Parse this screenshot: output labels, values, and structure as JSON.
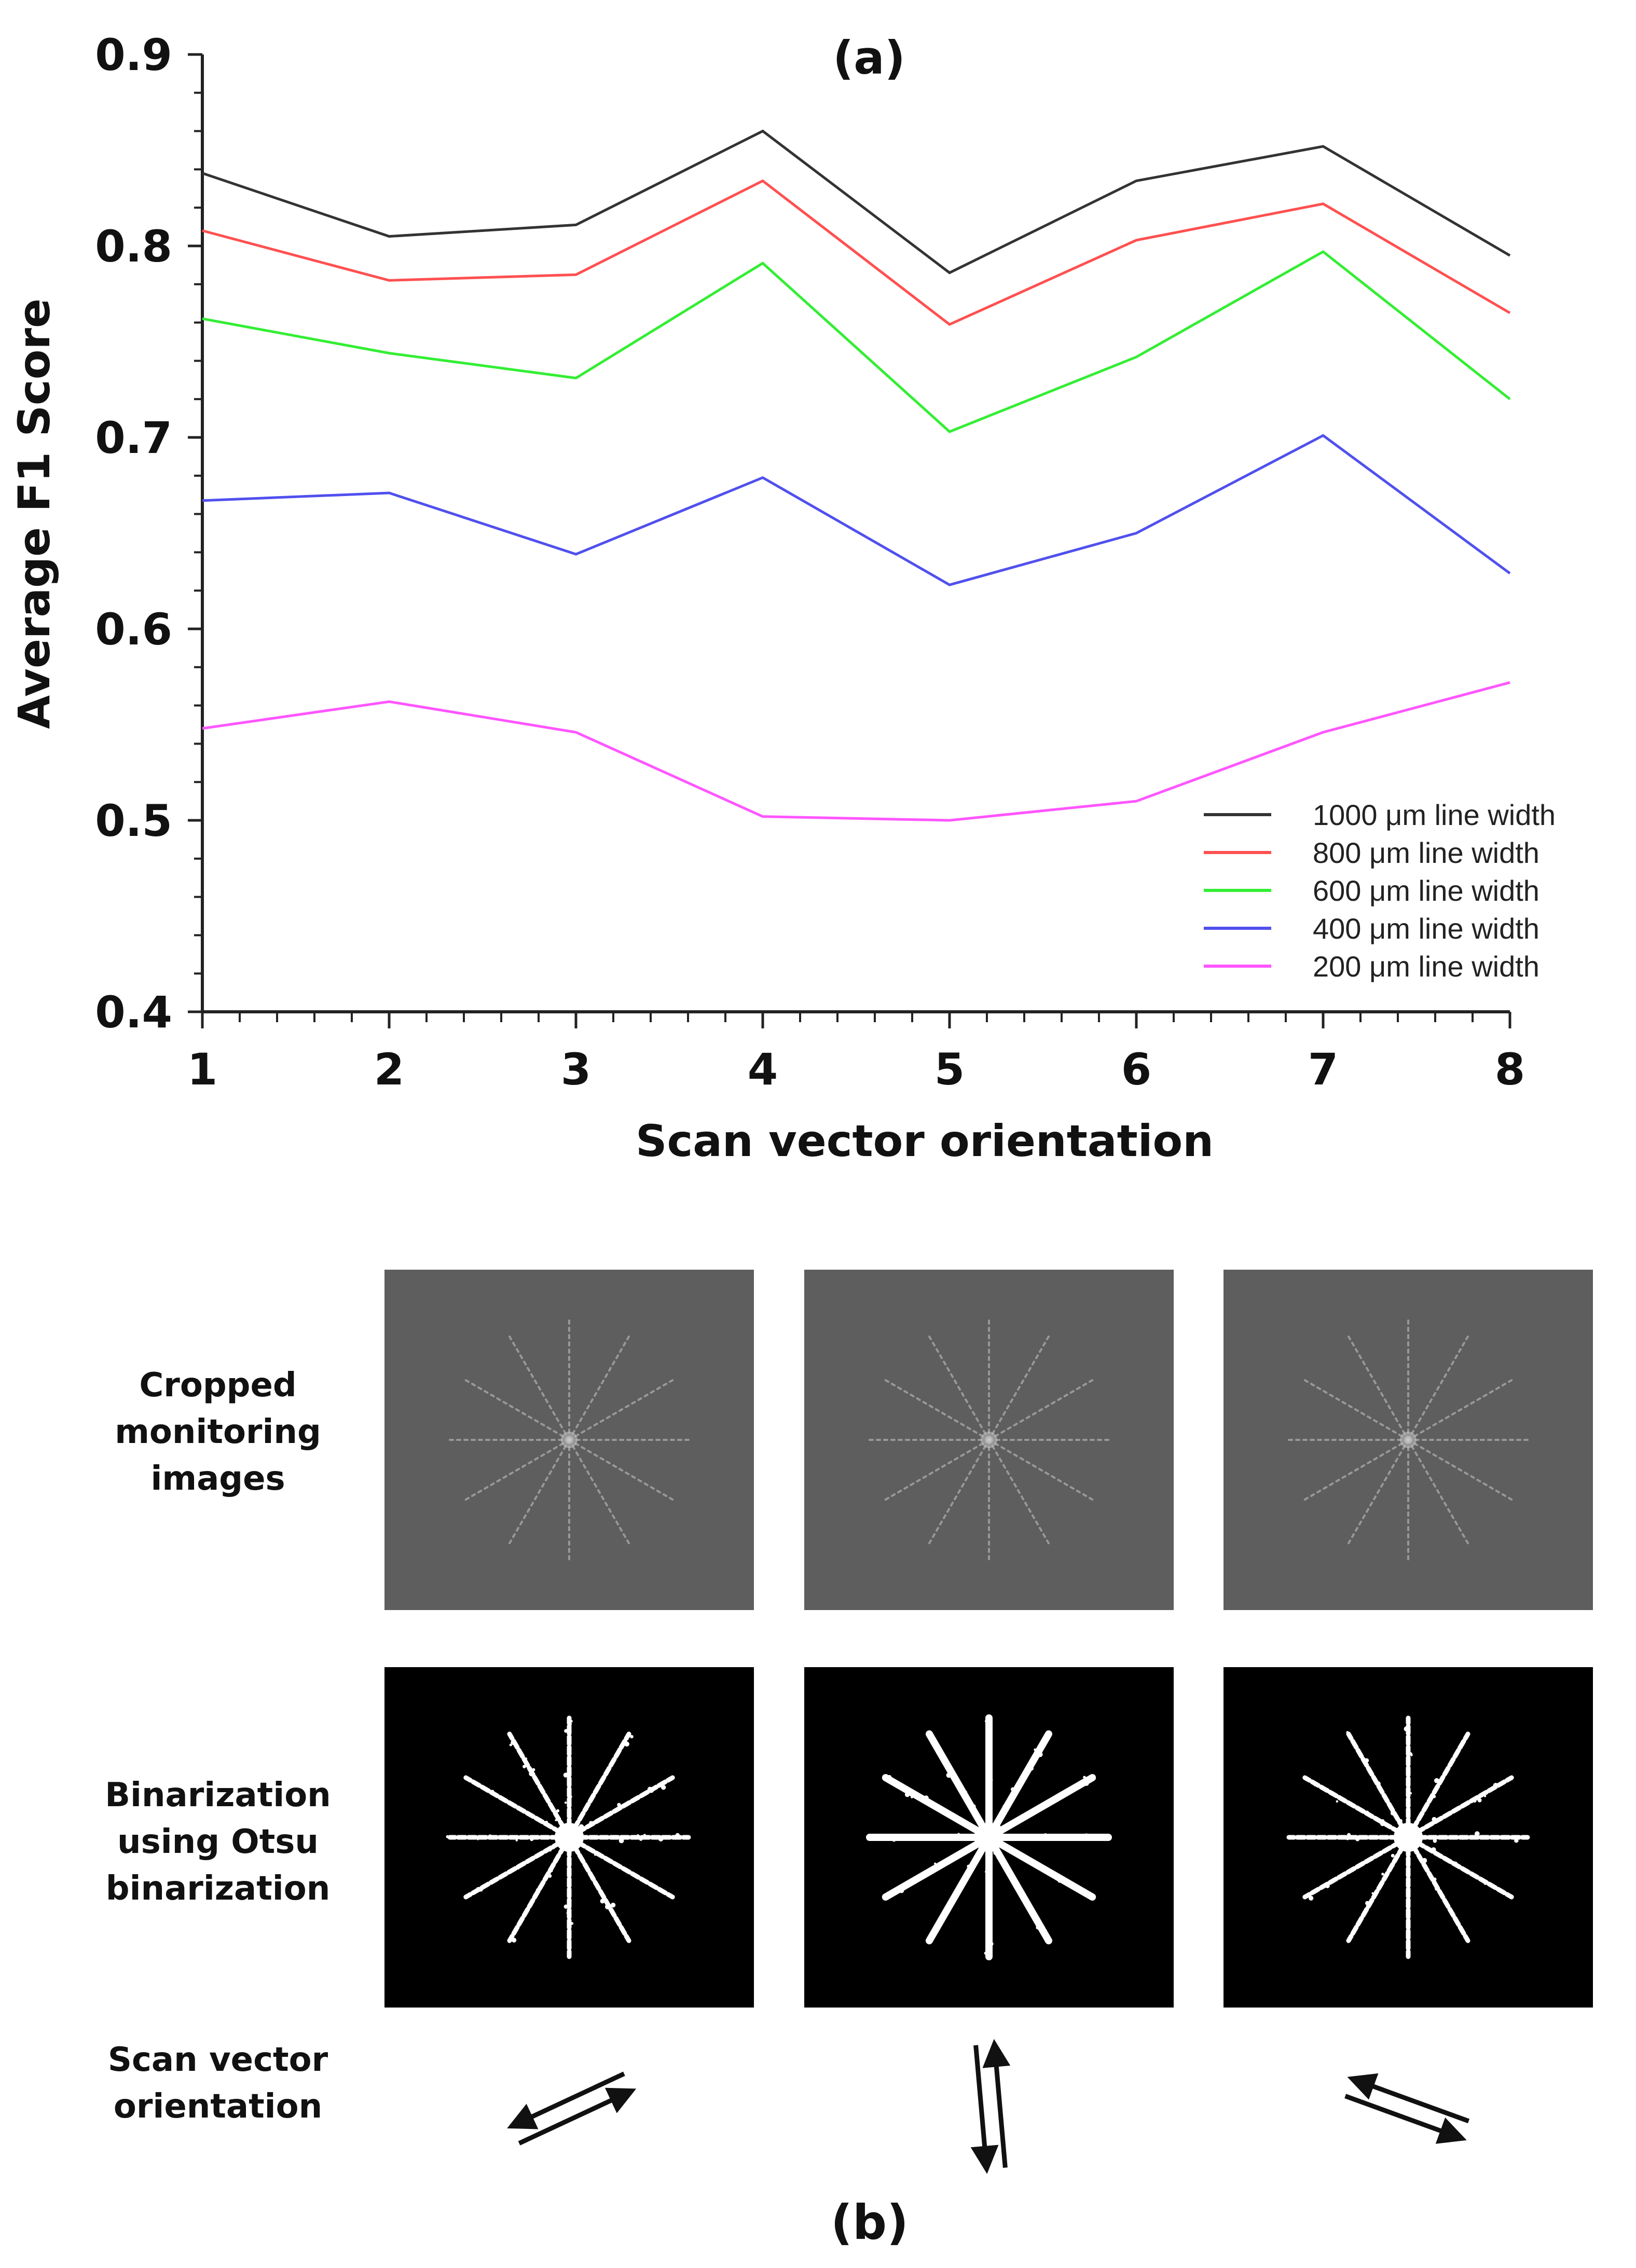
{
  "chart_data": {
    "type": "line",
    "title": "(a)",
    "xlabel": "Scan vector orientation",
    "ylabel": "Average F1 Score",
    "x": [
      1,
      2,
      3,
      4,
      5,
      6,
      7,
      8
    ],
    "xlim": [
      1,
      8
    ],
    "ylim": [
      0.4,
      0.9
    ],
    "yticks": [
      "0.4",
      "0.5",
      "0.6",
      "0.7",
      "0.8",
      "0.9"
    ],
    "xticks": [
      "1",
      "2",
      "3",
      "4",
      "5",
      "6",
      "7",
      "8"
    ],
    "grid": false,
    "legend_position": "lower-right",
    "series": [
      {
        "name": "1000 μm line width",
        "color": "#333333",
        "values": [
          0.838,
          0.805,
          0.811,
          0.86,
          0.786,
          0.834,
          0.852,
          0.795
        ]
      },
      {
        "name": "800 μm line width",
        "color": "#ff5050",
        "values": [
          0.808,
          0.782,
          0.785,
          0.834,
          0.759,
          0.803,
          0.822,
          0.765
        ]
      },
      {
        "name": "600 μm line width",
        "color": "#33ee33",
        "values": [
          0.762,
          0.744,
          0.731,
          0.791,
          0.703,
          0.742,
          0.797,
          0.72
        ]
      },
      {
        "name": "400 μm line width",
        "color": "#5050ee",
        "values": [
          0.667,
          0.671,
          0.639,
          0.679,
          0.623,
          0.65,
          0.701,
          0.629
        ]
      },
      {
        "name": "200 μm line width",
        "color": "#ff55ff",
        "values": [
          0.548,
          0.562,
          0.546,
          0.502,
          0.5,
          0.51,
          0.546,
          0.572
        ]
      }
    ]
  },
  "panel_b": {
    "label": "(b)",
    "rows": [
      {
        "label": "Cropped\nmonitoring\nimages"
      },
      {
        "label": "Binarization\nusing Otsu\nbinarization"
      },
      {
        "label": "Scan vector\norientation"
      }
    ],
    "columns": [
      {
        "arrow_angle_deg": -25
      },
      {
        "arrow_angle_deg": -95
      },
      {
        "arrow_angle_deg": 20
      }
    ],
    "colors": {
      "grey_background": "#5e5e5e",
      "binary_background": "#000000",
      "foreground": "#ffffff"
    }
  }
}
